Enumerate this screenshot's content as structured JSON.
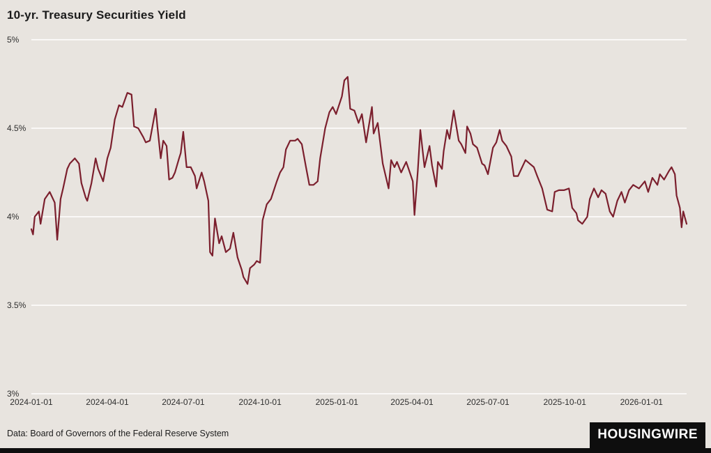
{
  "footer": {
    "source": "Data: Board of Governors of the Federal Reserve System",
    "logo_text": "HOUSINGWIRE"
  },
  "colors": {
    "background": "#e8e4df",
    "line": "#7b1f2d",
    "gridline": "#ffffff",
    "logo_bg": "#0e0e0e",
    "logo_text": "#ffffff",
    "tick_text": "#2e2e2e"
  },
  "chart_data": {
    "type": "line",
    "title": "10-yr. Treasury Securities Yield",
    "xlabel": "",
    "ylabel": "",
    "series_name": "10-yr Treasury Securities Yield (%)",
    "ylim": [
      3,
      5
    ],
    "x_range": [
      "2024-01-01",
      "2026-02-24"
    ],
    "grid": "horizontal-only",
    "legend": "none",
    "y_ticks": [
      {
        "value": 5,
        "label": "5%"
      },
      {
        "value": 4.5,
        "label": "4.5%"
      },
      {
        "value": 4,
        "label": "4%"
      },
      {
        "value": 3.5,
        "label": "3.5%"
      },
      {
        "value": 3,
        "label": "3%"
      }
    ],
    "x_ticks": [
      "2024-01-01",
      "2024-04-01",
      "2024-07-01",
      "2024-10-01",
      "2025-01-01",
      "2025-04-01",
      "2025-07-01",
      "2025-10-01",
      "2026-01-01"
    ],
    "points": [
      [
        "2024-01-01",
        3.93
      ],
      [
        "2024-01-03",
        3.9
      ],
      [
        "2024-01-05",
        4.0
      ],
      [
        "2024-01-10",
        4.03
      ],
      [
        "2024-01-12",
        3.96
      ],
      [
        "2024-01-17",
        4.1
      ],
      [
        "2024-01-23",
        4.14
      ],
      [
        "2024-01-29",
        4.08
      ],
      [
        "2024-02-01",
        3.87
      ],
      [
        "2024-02-05",
        4.1
      ],
      [
        "2024-02-08",
        4.16
      ],
      [
        "2024-02-13",
        4.27
      ],
      [
        "2024-02-16",
        4.3
      ],
      [
        "2024-02-22",
        4.33
      ],
      [
        "2024-02-27",
        4.3
      ],
      [
        "2024-03-01",
        4.19
      ],
      [
        "2024-03-06",
        4.11
      ],
      [
        "2024-03-08",
        4.09
      ],
      [
        "2024-03-13",
        4.19
      ],
      [
        "2024-03-18",
        4.33
      ],
      [
        "2024-03-21",
        4.27
      ],
      [
        "2024-03-27",
        4.2
      ],
      [
        "2024-04-01",
        4.33
      ],
      [
        "2024-04-05",
        4.39
      ],
      [
        "2024-04-10",
        4.55
      ],
      [
        "2024-04-15",
        4.63
      ],
      [
        "2024-04-19",
        4.62
      ],
      [
        "2024-04-25",
        4.7
      ],
      [
        "2024-04-30",
        4.69
      ],
      [
        "2024-05-03",
        4.51
      ],
      [
        "2024-05-08",
        4.5
      ],
      [
        "2024-05-14",
        4.45
      ],
      [
        "2024-05-17",
        4.42
      ],
      [
        "2024-05-22",
        4.43
      ],
      [
        "2024-05-29",
        4.61
      ],
      [
        "2024-05-31",
        4.51
      ],
      [
        "2024-06-04",
        4.33
      ],
      [
        "2024-06-07",
        4.43
      ],
      [
        "2024-06-11",
        4.4
      ],
      [
        "2024-06-14",
        4.21
      ],
      [
        "2024-06-18",
        4.22
      ],
      [
        "2024-06-21",
        4.25
      ],
      [
        "2024-06-26",
        4.33
      ],
      [
        "2024-06-28",
        4.36
      ],
      [
        "2024-07-01",
        4.48
      ],
      [
        "2024-07-05",
        4.28
      ],
      [
        "2024-07-10",
        4.28
      ],
      [
        "2024-07-15",
        4.23
      ],
      [
        "2024-07-17",
        4.16
      ],
      [
        "2024-07-23",
        4.25
      ],
      [
        "2024-07-26",
        4.2
      ],
      [
        "2024-07-31",
        4.09
      ],
      [
        "2024-08-02",
        3.8
      ],
      [
        "2024-08-05",
        3.78
      ],
      [
        "2024-08-08",
        3.99
      ],
      [
        "2024-08-13",
        3.85
      ],
      [
        "2024-08-16",
        3.89
      ],
      [
        "2024-08-21",
        3.8
      ],
      [
        "2024-08-26",
        3.82
      ],
      [
        "2024-08-30",
        3.91
      ],
      [
        "2024-09-04",
        3.77
      ],
      [
        "2024-09-09",
        3.7
      ],
      [
        "2024-09-11",
        3.66
      ],
      [
        "2024-09-16",
        3.62
      ],
      [
        "2024-09-19",
        3.71
      ],
      [
        "2024-09-24",
        3.73
      ],
      [
        "2024-09-27",
        3.75
      ],
      [
        "2024-10-01",
        3.74
      ],
      [
        "2024-10-04",
        3.98
      ],
      [
        "2024-10-09",
        4.07
      ],
      [
        "2024-10-14",
        4.1
      ],
      [
        "2024-10-21",
        4.2
      ],
      [
        "2024-10-25",
        4.25
      ],
      [
        "2024-10-29",
        4.28
      ],
      [
        "2024-11-01",
        4.38
      ],
      [
        "2024-11-06",
        4.43
      ],
      [
        "2024-11-12",
        4.43
      ],
      [
        "2024-11-15",
        4.44
      ],
      [
        "2024-11-20",
        4.41
      ],
      [
        "2024-11-25",
        4.28
      ],
      [
        "2024-11-29",
        4.18
      ],
      [
        "2024-12-04",
        4.18
      ],
      [
        "2024-12-09",
        4.2
      ],
      [
        "2024-12-12",
        4.33
      ],
      [
        "2024-12-18",
        4.5
      ],
      [
        "2024-12-23",
        4.59
      ],
      [
        "2024-12-27",
        4.62
      ],
      [
        "2024-12-31",
        4.58
      ],
      [
        "2025-01-07",
        4.68
      ],
      [
        "2025-01-10",
        4.77
      ],
      [
        "2025-01-14",
        4.79
      ],
      [
        "2025-01-17",
        4.61
      ],
      [
        "2025-01-22",
        4.6
      ],
      [
        "2025-01-27",
        4.53
      ],
      [
        "2025-01-31",
        4.58
      ],
      [
        "2025-02-05",
        4.42
      ],
      [
        "2025-02-12",
        4.62
      ],
      [
        "2025-02-14",
        4.47
      ],
      [
        "2025-02-19",
        4.53
      ],
      [
        "2025-02-25",
        4.3
      ],
      [
        "2025-02-28",
        4.24
      ],
      [
        "2025-03-04",
        4.16
      ],
      [
        "2025-03-07",
        4.32
      ],
      [
        "2025-03-11",
        4.28
      ],
      [
        "2025-03-14",
        4.31
      ],
      [
        "2025-03-19",
        4.25
      ],
      [
        "2025-03-25",
        4.31
      ],
      [
        "2025-03-28",
        4.27
      ],
      [
        "2025-04-02",
        4.2
      ],
      [
        "2025-04-04",
        4.01
      ],
      [
        "2025-04-08",
        4.26
      ],
      [
        "2025-04-11",
        4.49
      ],
      [
        "2025-04-16",
        4.28
      ],
      [
        "2025-04-22",
        4.4
      ],
      [
        "2025-04-25",
        4.29
      ],
      [
        "2025-04-30",
        4.17
      ],
      [
        "2025-05-02",
        4.31
      ],
      [
        "2025-05-07",
        4.27
      ],
      [
        "2025-05-09",
        4.37
      ],
      [
        "2025-05-13",
        4.49
      ],
      [
        "2025-05-16",
        4.44
      ],
      [
        "2025-05-21",
        4.6
      ],
      [
        "2025-05-27",
        4.43
      ],
      [
        "2025-05-30",
        4.41
      ],
      [
        "2025-06-04",
        4.36
      ],
      [
        "2025-06-06",
        4.51
      ],
      [
        "2025-06-10",
        4.47
      ],
      [
        "2025-06-13",
        4.41
      ],
      [
        "2025-06-18",
        4.39
      ],
      [
        "2025-06-24",
        4.3
      ],
      [
        "2025-06-27",
        4.29
      ],
      [
        "2025-07-01",
        4.24
      ],
      [
        "2025-07-07",
        4.39
      ],
      [
        "2025-07-11",
        4.42
      ],
      [
        "2025-07-15",
        4.49
      ],
      [
        "2025-07-18",
        4.43
      ],
      [
        "2025-07-23",
        4.4
      ],
      [
        "2025-07-29",
        4.34
      ],
      [
        "2025-08-01",
        4.23
      ],
      [
        "2025-08-06",
        4.23
      ],
      [
        "2025-08-12",
        4.29
      ],
      [
        "2025-08-15",
        4.32
      ],
      [
        "2025-08-20",
        4.3
      ],
      [
        "2025-08-25",
        4.28
      ],
      [
        "2025-08-29",
        4.23
      ],
      [
        "2025-09-04",
        4.16
      ],
      [
        "2025-09-10",
        4.04
      ],
      [
        "2025-09-16",
        4.03
      ],
      [
        "2025-09-19",
        4.14
      ],
      [
        "2025-09-24",
        4.15
      ],
      [
        "2025-09-30",
        4.15
      ],
      [
        "2025-10-06",
        4.16
      ],
      [
        "2025-10-10",
        4.05
      ],
      [
        "2025-10-15",
        4.02
      ],
      [
        "2025-10-17",
        3.98
      ],
      [
        "2025-10-22",
        3.96
      ],
      [
        "2025-10-28",
        4.0
      ],
      [
        "2025-10-31",
        4.1
      ],
      [
        "2025-11-05",
        4.16
      ],
      [
        "2025-11-10",
        4.11
      ],
      [
        "2025-11-14",
        4.15
      ],
      [
        "2025-11-19",
        4.13
      ],
      [
        "2025-11-24",
        4.03
      ],
      [
        "2025-11-28",
        4.0
      ],
      [
        "2025-12-03",
        4.09
      ],
      [
        "2025-12-08",
        4.14
      ],
      [
        "2025-12-12",
        4.08
      ],
      [
        "2025-12-17",
        4.15
      ],
      [
        "2025-12-22",
        4.18
      ],
      [
        "2025-12-29",
        4.16
      ],
      [
        "2026-01-05",
        4.2
      ],
      [
        "2026-01-09",
        4.14
      ],
      [
        "2026-01-14",
        4.22
      ],
      [
        "2026-01-20",
        4.18
      ],
      [
        "2026-01-23",
        4.24
      ],
      [
        "2026-01-28",
        4.21
      ],
      [
        "2026-02-03",
        4.26
      ],
      [
        "2026-02-06",
        4.28
      ],
      [
        "2026-02-10",
        4.24
      ],
      [
        "2026-02-12",
        4.12
      ],
      [
        "2026-02-16",
        4.05
      ],
      [
        "2026-02-18",
        3.94
      ],
      [
        "2026-02-20",
        4.03
      ],
      [
        "2026-02-24",
        3.96
      ]
    ]
  }
}
